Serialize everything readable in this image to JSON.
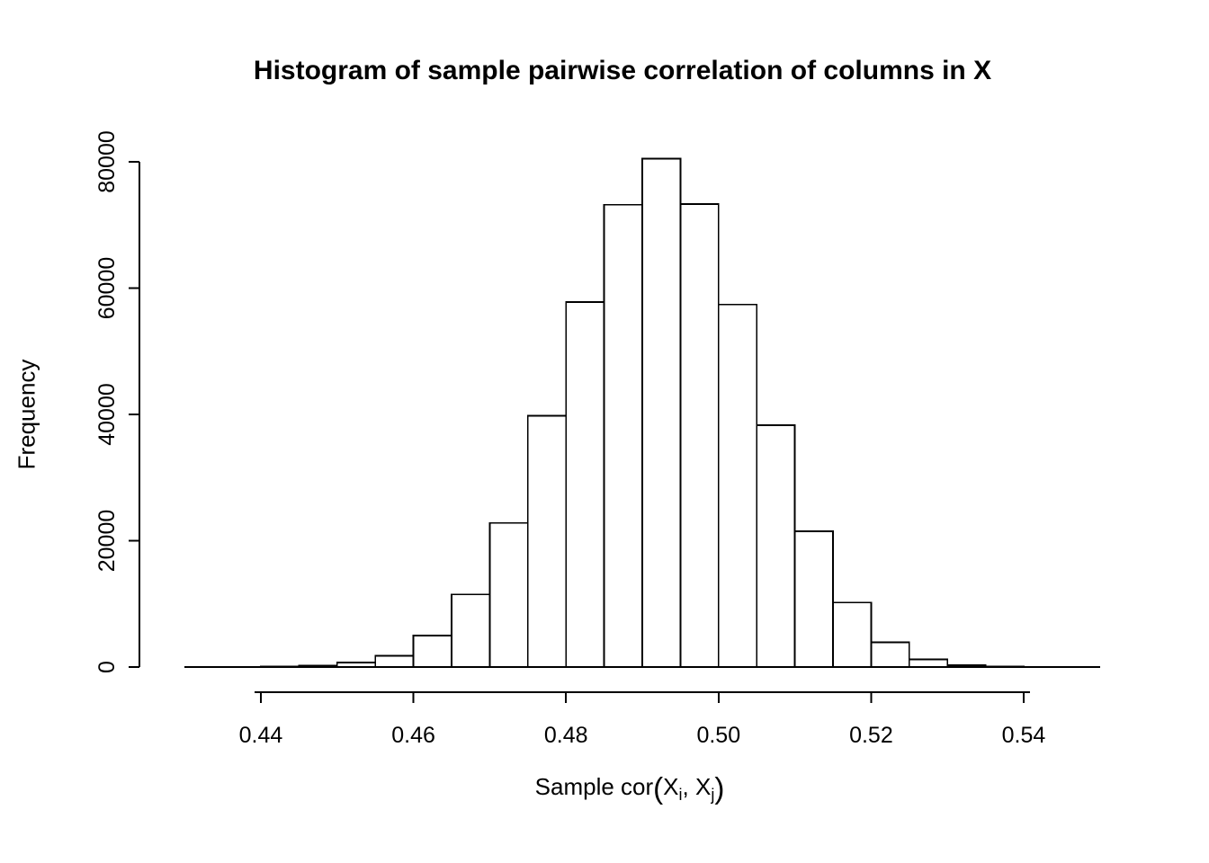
{
  "figure": {
    "background": "#ffffff"
  },
  "chart_data": {
    "type": "bar",
    "subtype": "histogram",
    "title": "Histogram of sample pairwise correlation of columns in X",
    "xlabel": "Sample cor(X_i, X_j)",
    "xlabel_parts": {
      "pre": "Sample cor",
      "open": "(",
      "x1": "X",
      "s1": "i",
      "mid": ", X",
      "s2": "j",
      "close": ")"
    },
    "ylabel": "Frequency",
    "bin_edges": [
      0.44,
      0.445,
      0.45,
      0.455,
      0.46,
      0.465,
      0.47,
      0.475,
      0.48,
      0.485,
      0.49,
      0.495,
      0.5,
      0.505,
      0.51,
      0.515,
      0.52,
      0.525,
      0.53,
      0.535,
      0.54
    ],
    "counts": [
      50,
      200,
      700,
      1800,
      5000,
      11500,
      22800,
      39800,
      57800,
      73200,
      80500,
      73300,
      57400,
      38300,
      21500,
      10200,
      3900,
      1200,
      300,
      80
    ],
    "x_ticks": [
      0.44,
      0.46,
      0.48,
      0.5,
      0.52,
      0.54
    ],
    "x_tick_labels": [
      "0.44",
      "0.46",
      "0.48",
      "0.50",
      "0.52",
      "0.54"
    ],
    "y_ticks": [
      0,
      20000,
      40000,
      60000,
      80000
    ],
    "y_tick_labels": [
      "0",
      "20000",
      "40000",
      "60000",
      "80000"
    ],
    "xlim": [
      0.43,
      0.55
    ],
    "ylim": [
      0,
      84000
    ],
    "grid": false,
    "legend": "none",
    "bar_fill": "#ffffff",
    "bar_stroke": "#000000"
  }
}
